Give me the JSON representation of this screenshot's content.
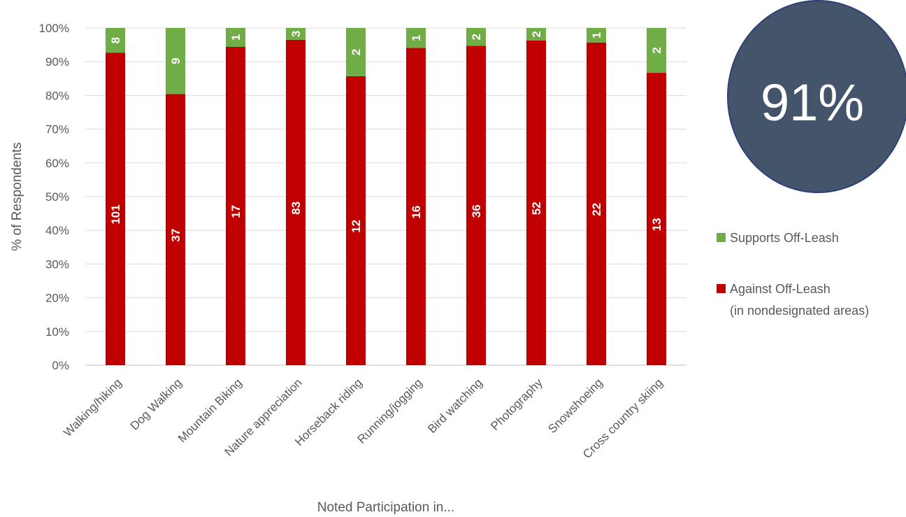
{
  "stat_badge": {
    "text": "91%",
    "color": "#44546a"
  },
  "colors": {
    "supports": "#70ad47",
    "against": "#c00000"
  },
  "chart_data": {
    "type": "bar",
    "stacked": true,
    "percent_stacked": true,
    "xlabel": "Noted Participation in...",
    "ylabel": "% of Respondents",
    "ylim": [
      0,
      100
    ],
    "y_ticks": [
      "0%",
      "10%",
      "20%",
      "30%",
      "40%",
      "50%",
      "60%",
      "70%",
      "80%",
      "90%",
      "100%"
    ],
    "grid": true,
    "legend_position": "right",
    "categories": [
      "Walking/hiking",
      "Dog Walking",
      "Mountain Biking",
      "Nature appreciation",
      "Horseback riding",
      "Running/jogging",
      "Bird watching",
      "Photography",
      "Snowshoeing",
      "Cross country skiing"
    ],
    "series": [
      {
        "name": "Against Off-Leash",
        "name_line2": "(in nondesignated areas)",
        "counts": [
          101,
          37,
          17,
          83,
          12,
          16,
          36,
          52,
          22,
          13
        ],
        "percent": [
          92.7,
          80.4,
          94.4,
          96.5,
          85.7,
          94.1,
          94.7,
          96.3,
          95.7,
          86.7
        ],
        "color": "#c00000"
      },
      {
        "name": "Supports Off-Leash",
        "counts": [
          8,
          9,
          1,
          3,
          2,
          1,
          2,
          2,
          1,
          2
        ],
        "percent": [
          7.3,
          19.6,
          5.6,
          3.5,
          14.3,
          5.9,
          5.3,
          3.7,
          4.3,
          13.3
        ],
        "color": "#70ad47"
      }
    ]
  }
}
